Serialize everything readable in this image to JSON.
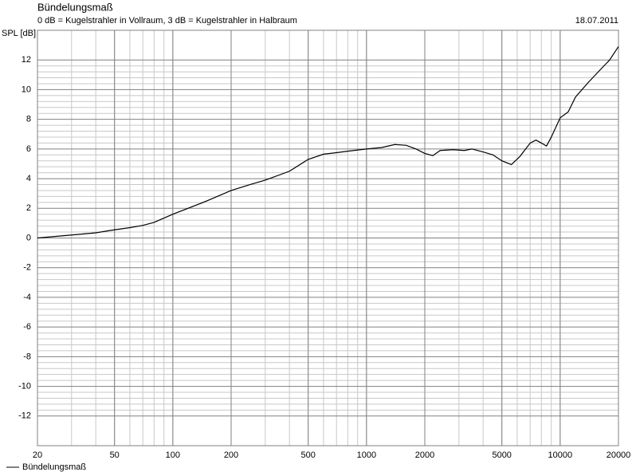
{
  "chart_data": {
    "type": "line",
    "title": "Bündelungsmaß",
    "subtitle": "0 dB = Kugelstrahler in Vollraum, 3 dB = Kugelstrahler in Halbraum",
    "date": "18.07.2011",
    "y_label": "SPL [dB]",
    "x_scale": "log",
    "grid": true,
    "legend": "bottom-left",
    "xlim": [
      20,
      20000
    ],
    "xticks": [
      20,
      50,
      100,
      200,
      500,
      1000,
      2000,
      5000,
      10000,
      20000
    ],
    "ylim": [
      -14,
      14
    ],
    "yticks": [
      -12,
      -10,
      -8,
      -6,
      -4,
      -2,
      0,
      2,
      4,
      6,
      8,
      10,
      12
    ],
    "x": [
      20,
      30,
      40,
      50,
      60,
      70,
      80,
      100,
      150,
      200,
      250,
      300,
      400,
      500,
      600,
      700,
      800,
      1000,
      1200,
      1400,
      1600,
      1800,
      2000,
      2200,
      2400,
      2800,
      3200,
      3500,
      4000,
      4500,
      5000,
      5600,
      6200,
      7000,
      7500,
      8000,
      8500,
      9000,
      10000,
      11000,
      12000,
      14000,
      16000,
      18000,
      20000
    ],
    "series": [
      {
        "name": "Bündelungsmaß",
        "color": "#000000",
        "values": [
          0,
          0.2,
          0.35,
          0.55,
          0.7,
          0.85,
          1.05,
          1.6,
          2.5,
          3.2,
          3.6,
          3.9,
          4.5,
          5.3,
          5.65,
          5.75,
          5.85,
          6.0,
          6.1,
          6.3,
          6.25,
          6.0,
          5.7,
          5.55,
          5.9,
          5.95,
          5.9,
          6.0,
          5.8,
          5.6,
          5.2,
          4.95,
          5.5,
          6.4,
          6.6,
          6.4,
          6.2,
          6.8,
          8.1,
          8.5,
          9.5,
          10.5,
          11.3,
          12.0,
          12.9
        ]
      }
    ]
  }
}
